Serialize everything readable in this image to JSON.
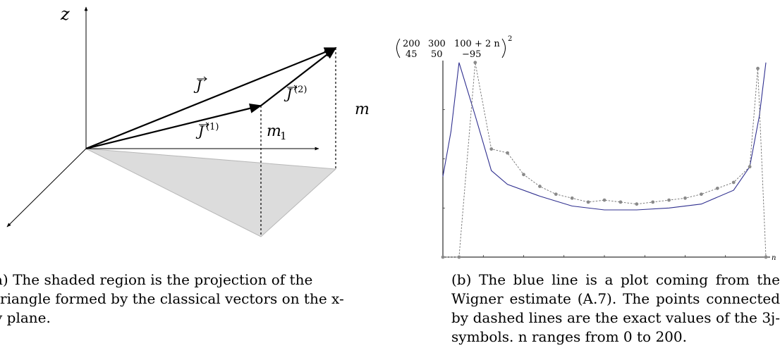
{
  "figure_a": {
    "labels": {
      "z": "z",
      "J": "J",
      "J1": "J",
      "J1_sup": "(1)",
      "J2": "J",
      "J2_sup": "(2)",
      "m": "m",
      "m1": "m",
      "m1_sub": "1"
    },
    "caption": "a) The shaded region is the projection of the triangle formed by the classical vectors on the x-y plane.",
    "colors": {
      "shade": "#dcdcdc",
      "shade_edge": "#b8b8b8"
    }
  },
  "figure_b": {
    "symbol": {
      "top": [
        "200",
        "300",
        "100 + 2 n"
      ],
      "bottom": [
        "45",
        "50",
        "−95"
      ],
      "power": "2"
    },
    "axis_label": "n",
    "caption": "(b) The blue line is a plot coming from the Wigner estimate (A.7). The points connected by dashed lines are the exact values of the 3j-symbols. n ranges from 0 to 200.",
    "colors": {
      "estimate": "#2f2f8f",
      "points": "#8a8a8a",
      "dashes": "#6e6e6e"
    }
  },
  "chart_data": {
    "type": "scatter",
    "title": "",
    "xlabel": "n",
    "ylabel": "",
    "xlim": [
      0,
      200
    ],
    "ylim": [
      0,
      1
    ],
    "y_units": "fraction of plot height (y tick labels illegible)",
    "series": [
      {
        "name": "",
        "style": "points joined by dashed line",
        "x": [
          0,
          10,
          20,
          30,
          40,
          50,
          60,
          70,
          80,
          90,
          100,
          110,
          120,
          130,
          140,
          150,
          160,
          170,
          180,
          190,
          195,
          200
        ],
        "y": [
          0,
          0,
          0.99,
          0.55,
          0.53,
          0.42,
          0.36,
          0.32,
          0.3,
          0.28,
          0.29,
          0.28,
          0.27,
          0.28,
          0.29,
          0.3,
          0.32,
          0.35,
          0.38,
          0.46,
          0.96,
          0.0
        ]
      },
      {
        "name": "",
        "style": "solid line",
        "x": [
          0,
          5,
          10,
          20,
          30,
          40,
          60,
          80,
          100,
          120,
          140,
          160,
          180,
          190,
          196,
          200
        ],
        "y": [
          0.41,
          0.64,
          0.99,
          0.72,
          0.44,
          0.37,
          0.31,
          0.26,
          0.24,
          0.24,
          0.25,
          0.27,
          0.34,
          0.46,
          0.72,
          0.99
        ]
      }
    ]
  }
}
